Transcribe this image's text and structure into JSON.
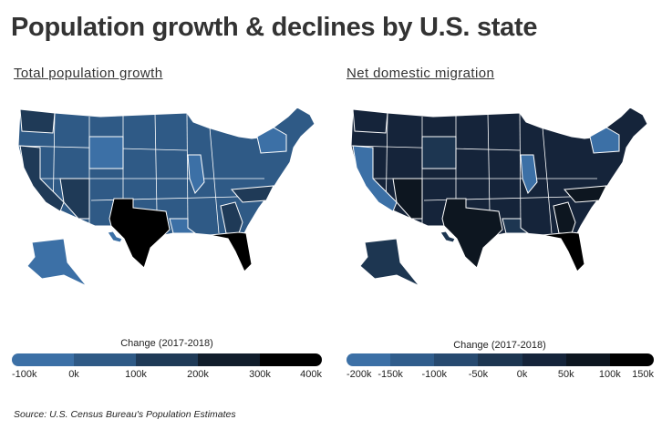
{
  "title": "Population growth & declines by U.S. state",
  "maps": [
    {
      "subtitle": "Total population growth",
      "legend_title": "Change (2017-2018)",
      "legend_ticks": [
        "-100k",
        "0k",
        "100k",
        "200k",
        "300k",
        "400k"
      ],
      "legend_colors": [
        "#3c70a6",
        "#2f5a86",
        "#1f3a57",
        "#111d2b",
        "#000000"
      ],
      "base_fill": "#2f5a86",
      "state_fills": {
        "texas": "#000000",
        "florida": "#000000",
        "california": "#1f3a57",
        "wyoming": "#3c70a6",
        "alaska": "#3c70a6",
        "washington": "#1f3a57",
        "georgia": "#1f3a57",
        "northcarolina": "#1f3a57",
        "newyork": "#3c70a6",
        "illinois": "#3c70a6",
        "louisiana": "#3c70a6",
        "arizona": "#1f3a57",
        "hawaii": "#3c70a6"
      }
    },
    {
      "subtitle": "Net domestic migration",
      "legend_title": "Change (2017-2018)",
      "legend_ticks": [
        "-200k",
        "-150k",
        "-100k",
        "-50k",
        "0k",
        "50k",
        "100k",
        "150k"
      ],
      "legend_colors": [
        "#3c70a6",
        "#305d8c",
        "#274a70",
        "#1d3651",
        "#15243a",
        "#0d1620",
        "#000000"
      ],
      "base_fill": "#15243a",
      "state_fills": {
        "texas": "#0d1620",
        "florida": "#000000",
        "california": "#3c70a6",
        "wyoming": "#1d3651",
        "alaska": "#1d3651",
        "washington": "#15243a",
        "georgia": "#0d1620",
        "northcarolina": "#0d1620",
        "newyork": "#3c70a6",
        "illinois": "#3c70a6",
        "louisiana": "#1d3651",
        "arizona": "#0d1620",
        "hawaii": "#1d3651"
      }
    }
  ],
  "source": "Source: U.S. Census Bureau's Population Estimates"
}
